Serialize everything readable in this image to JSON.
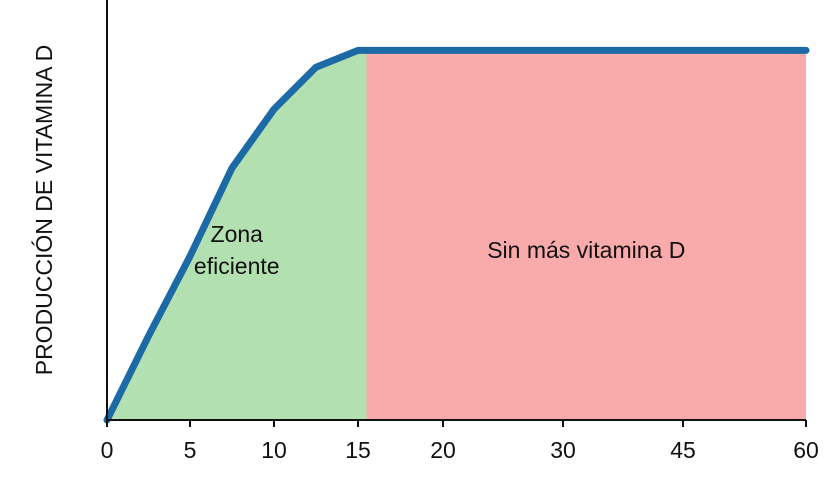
{
  "chart_data": {
    "type": "line",
    "y_label": "PRODUCCIÓN DE VITAMINA D",
    "x": [
      0,
      2.5,
      5,
      7.5,
      10,
      12.5,
      15,
      15.5,
      60
    ],
    "series": [
      {
        "color": "#1b6aa5",
        "values": [
          0,
          20,
          39,
          60,
          74,
          84,
          88,
          88,
          88
        ]
      }
    ],
    "xlim": [
      0,
      60
    ],
    "xticks": [
      0,
      5,
      10,
      15,
      20,
      30,
      45,
      60
    ],
    "ylim": [
      0,
      100
    ],
    "regions": [
      {
        "label": "Zona eficiente",
        "from": 0,
        "to": 15.5,
        "color": "#b3e0b0"
      },
      {
        "label": "Sin más vitamina D",
        "from": 15.5,
        "to": 60,
        "color": "#f8abaa"
      }
    ]
  }
}
